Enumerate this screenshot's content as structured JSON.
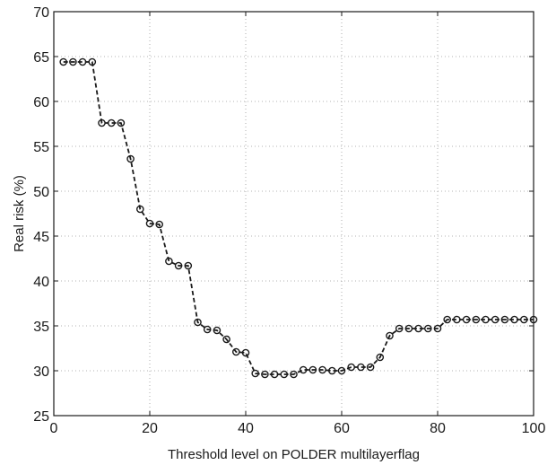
{
  "chart_data": {
    "type": "line",
    "title": "",
    "xlabel": "Threshold level on POLDER multilayerflag",
    "ylabel": "Real risk (%)",
    "xlim": [
      0,
      100
    ],
    "ylim": [
      25,
      70
    ],
    "xticks": [
      0,
      20,
      40,
      60,
      80,
      100
    ],
    "yticks": [
      25,
      30,
      35,
      40,
      45,
      50,
      55,
      60,
      65,
      70
    ],
    "grid": true,
    "legend": "none",
    "line_style": "dashed",
    "marker": "circle",
    "series_color": "#1a1a1a",
    "series": [
      {
        "x": [
          2,
          4,
          6,
          8,
          10,
          12,
          14,
          16,
          18,
          20,
          22,
          24,
          26,
          28,
          30,
          32,
          34,
          36,
          38,
          40,
          42,
          44,
          46,
          48,
          50,
          52,
          54,
          56,
          58,
          60,
          62,
          64,
          66,
          68,
          70,
          72,
          74,
          76,
          78,
          80,
          82,
          84,
          86,
          88,
          90,
          92,
          94,
          96,
          98,
          100
        ],
        "y": [
          64.4,
          64.4,
          64.4,
          64.4,
          57.6,
          57.6,
          57.6,
          53.6,
          48.0,
          46.4,
          46.3,
          42.2,
          41.7,
          41.7,
          35.4,
          34.6,
          34.5,
          33.5,
          32.1,
          32.0,
          29.7,
          29.6,
          29.6,
          29.6,
          29.6,
          30.1,
          30.1,
          30.1,
          30.0,
          30.0,
          30.4,
          30.4,
          30.4,
          31.5,
          33.9,
          34.7,
          34.7,
          34.7,
          34.7,
          34.7,
          35.7,
          35.7,
          35.7,
          35.7,
          35.7,
          35.7,
          35.7,
          35.7,
          35.7,
          35.7
        ]
      }
    ]
  }
}
